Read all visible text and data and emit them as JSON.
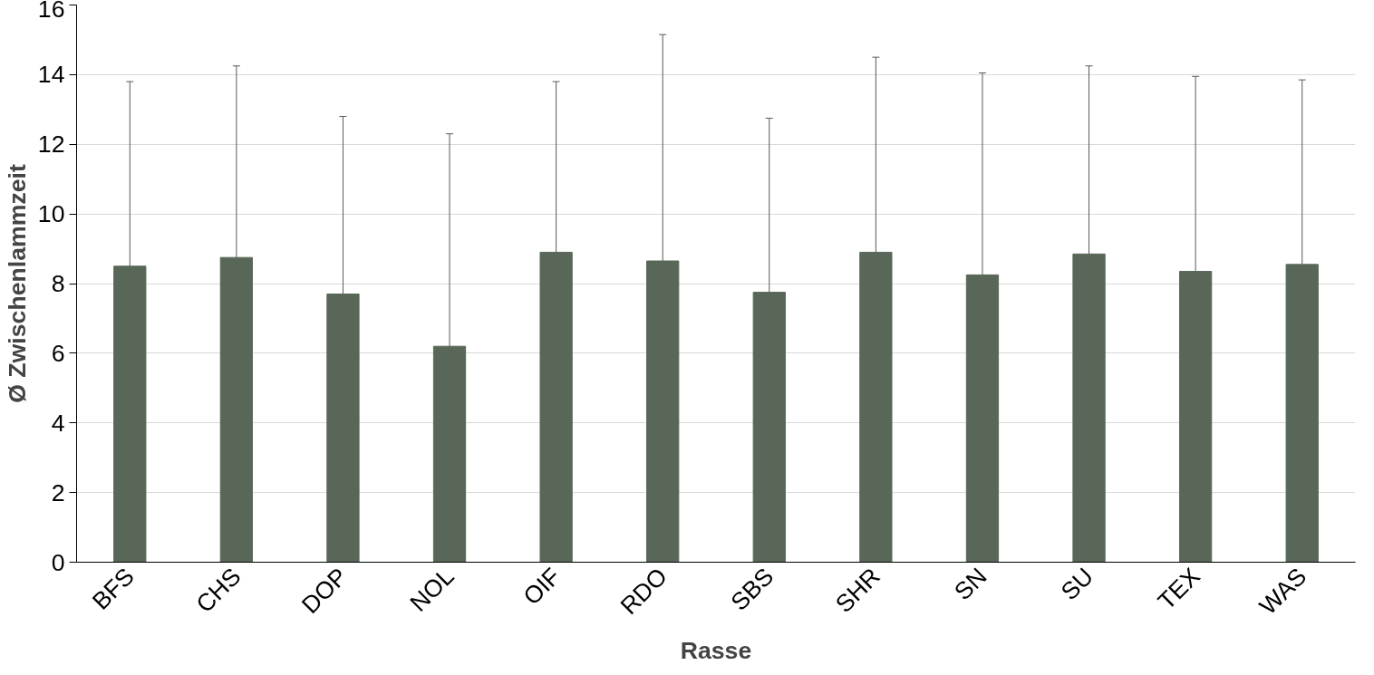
{
  "chart_data": {
    "type": "bar",
    "xlabel": "Rasse",
    "ylabel": "Ø Zwischenlammzeit",
    "categories": [
      "BFS",
      "CHS",
      "DOP",
      "NOL",
      "OIF",
      "RDO",
      "SBS",
      "SHR",
      "SN",
      "SU",
      "TEX",
      "WAS"
    ],
    "values": [
      8.5,
      8.75,
      7.7,
      6.2,
      8.9,
      8.65,
      7.75,
      8.9,
      8.25,
      8.85,
      8.35,
      8.55
    ],
    "errors": [
      5.3,
      5.5,
      5.1,
      6.1,
      4.9,
      6.5,
      5.0,
      5.6,
      5.8,
      5.4,
      5.6,
      5.3
    ],
    "color": "#586758",
    "ylim": [
      0,
      16
    ],
    "yticks": [
      0,
      2,
      4,
      6,
      8,
      10,
      12,
      14,
      16
    ],
    "grid": "y"
  }
}
